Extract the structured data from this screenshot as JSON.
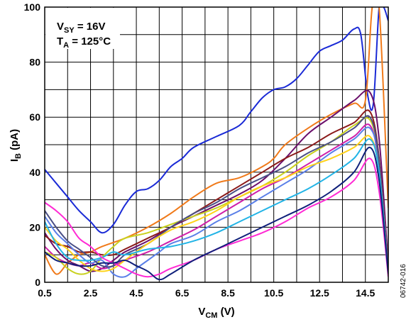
{
  "chart_data": {
    "type": "line",
    "xlabel": {
      "main": "V",
      "sub": "CM",
      "unit": " (V)"
    },
    "ylabel": {
      "main": "I",
      "sub": "B",
      "unit": " (pA)"
    },
    "xlim": [
      0.5,
      15.5
    ],
    "ylim": [
      0,
      100
    ],
    "xticks": [
      "0.5",
      "2.5",
      "4.5",
      "6.5",
      "8.5",
      "10.5",
      "12.5",
      "14.5"
    ],
    "yticks": [
      "0",
      "20",
      "40",
      "60",
      "80",
      "100"
    ],
    "x_grid_step": 1,
    "y_grid_step": 10,
    "grid": true,
    "annotations": [
      {
        "main": "V",
        "sub": "SY",
        "rest": " = 16V"
      },
      {
        "main": "T",
        "sub": "A",
        "rest": " = 125°C"
      }
    ],
    "figure_id": "06742-016",
    "series": [
      {
        "color": "#1a2ad6",
        "points": [
          [
            0.5,
            41
          ],
          [
            1,
            36
          ],
          [
            1.5,
            31
          ],
          [
            2,
            26
          ],
          [
            2.5,
            22
          ],
          [
            3,
            18
          ],
          [
            3.5,
            21
          ],
          [
            4,
            28
          ],
          [
            4.5,
            33
          ],
          [
            5,
            34
          ],
          [
            5.5,
            37
          ],
          [
            6,
            42
          ],
          [
            6.5,
            45
          ],
          [
            7,
            49
          ],
          [
            8,
            53
          ],
          [
            9,
            57
          ],
          [
            9.5,
            62
          ],
          [
            10,
            67
          ],
          [
            10.5,
            70
          ],
          [
            11,
            71
          ],
          [
            11.5,
            74
          ],
          [
            12,
            79
          ],
          [
            12.5,
            84
          ],
          [
            13,
            86
          ],
          [
            13.5,
            88
          ],
          [
            14,
            92
          ],
          [
            14.3,
            90
          ],
          [
            14.6,
            68
          ],
          [
            14.85,
            65
          ],
          [
            15.1,
            100
          ],
          [
            15.3,
            100
          ],
          [
            15.5,
            95
          ]
        ]
      },
      {
        "color": "#f07a1a",
        "points": [
          [
            0.5,
            10
          ],
          [
            1,
            3
          ],
          [
            1.5,
            7
          ],
          [
            2,
            10
          ],
          [
            2.5,
            11
          ],
          [
            3,
            13
          ],
          [
            4,
            16
          ],
          [
            5,
            20
          ],
          [
            6,
            25
          ],
          [
            7,
            31
          ],
          [
            8,
            36
          ],
          [
            9,
            38
          ],
          [
            10,
            42
          ],
          [
            10.5,
            45
          ],
          [
            11,
            50
          ],
          [
            12,
            56
          ],
          [
            13,
            61
          ],
          [
            14,
            65
          ],
          [
            14.5,
            66
          ],
          [
            14.8,
            100
          ],
          [
            15.1,
            100
          ],
          [
            15.5,
            27
          ]
        ]
      },
      {
        "color": "#6b0f6b",
        "points": [
          [
            0.5,
            18
          ],
          [
            1,
            12
          ],
          [
            1.5,
            8
          ],
          [
            2,
            6
          ],
          [
            2.5,
            4
          ],
          [
            3,
            5
          ],
          [
            3.5,
            8
          ],
          [
            4,
            11
          ],
          [
            5,
            15
          ],
          [
            6,
            20
          ],
          [
            7,
            24
          ],
          [
            8,
            28
          ],
          [
            9,
            32
          ],
          [
            10,
            37
          ],
          [
            11,
            45
          ],
          [
            12,
            54
          ],
          [
            13,
            60
          ],
          [
            14,
            66
          ],
          [
            14.7,
            69
          ],
          [
            15.1,
            52
          ],
          [
            15.5,
            6
          ]
        ]
      },
      {
        "color": "#8b1a1a",
        "points": [
          [
            0.5,
            17
          ],
          [
            1,
            14
          ],
          [
            1.5,
            13
          ],
          [
            2,
            11
          ],
          [
            2.5,
            11
          ],
          [
            3,
            10
          ],
          [
            3.5,
            10
          ],
          [
            4,
            12
          ],
          [
            5,
            16
          ],
          [
            6,
            20
          ],
          [
            7,
            25
          ],
          [
            8,
            30
          ],
          [
            9,
            35
          ],
          [
            10,
            40
          ],
          [
            11,
            45
          ],
          [
            12,
            49
          ],
          [
            13,
            54
          ],
          [
            14,
            58
          ],
          [
            14.7,
            62
          ],
          [
            15.1,
            45
          ],
          [
            15.5,
            4
          ]
        ]
      },
      {
        "color": "#cf1fa9",
        "points": [
          [
            0.5,
            13
          ],
          [
            1,
            9
          ],
          [
            1.5,
            7
          ],
          [
            2,
            6
          ],
          [
            2.5,
            7
          ],
          [
            3,
            5
          ],
          [
            3.5,
            6
          ],
          [
            4,
            8
          ],
          [
            5,
            11
          ],
          [
            6,
            15
          ],
          [
            7,
            19
          ],
          [
            8,
            24
          ],
          [
            9,
            29
          ],
          [
            10,
            34
          ],
          [
            11,
            38
          ],
          [
            12,
            43
          ],
          [
            13,
            48
          ],
          [
            14,
            53
          ],
          [
            14.7,
            57
          ],
          [
            15.1,
            42
          ],
          [
            15.5,
            4
          ]
        ]
      },
      {
        "color": "#c9d11e",
        "points": [
          [
            0.5,
            11
          ],
          [
            1,
            9
          ],
          [
            1.5,
            5
          ],
          [
            2,
            3
          ],
          [
            2.5,
            4
          ],
          [
            3,
            9
          ],
          [
            3.5,
            13
          ],
          [
            4,
            16
          ],
          [
            5,
            18
          ],
          [
            6,
            21
          ],
          [
            7,
            24
          ],
          [
            8,
            27
          ],
          [
            9,
            31
          ],
          [
            10,
            35
          ],
          [
            11,
            40
          ],
          [
            12,
            46
          ],
          [
            13,
            51
          ],
          [
            14,
            57
          ],
          [
            14.7,
            59
          ],
          [
            15.1,
            44
          ],
          [
            15.5,
            3
          ]
        ]
      },
      {
        "color": "#5a7fe8",
        "points": [
          [
            0.5,
            24
          ],
          [
            1,
            18
          ],
          [
            1.5,
            14
          ],
          [
            2,
            10
          ],
          [
            2.5,
            7
          ],
          [
            3,
            8
          ],
          [
            3.5,
            3
          ],
          [
            4,
            2
          ],
          [
            4.5,
            5
          ],
          [
            5,
            8
          ],
          [
            5.5,
            11
          ],
          [
            6,
            14
          ],
          [
            7,
            17
          ],
          [
            8,
            22
          ],
          [
            9,
            26
          ],
          [
            10,
            31
          ],
          [
            11,
            36
          ],
          [
            12,
            41
          ],
          [
            13,
            47
          ],
          [
            14,
            52
          ],
          [
            14.7,
            56
          ],
          [
            15.1,
            43
          ],
          [
            15.5,
            2
          ]
        ]
      },
      {
        "color": "#4a4f86",
        "points": [
          [
            0.5,
            26
          ],
          [
            1,
            20
          ],
          [
            1.5,
            15
          ],
          [
            2,
            12
          ],
          [
            2.5,
            9
          ],
          [
            3,
            6
          ],
          [
            3.5,
            6
          ],
          [
            4,
            10
          ],
          [
            5,
            14
          ],
          [
            6,
            20
          ],
          [
            7,
            25
          ],
          [
            8,
            29
          ],
          [
            9,
            34
          ],
          [
            10,
            38
          ],
          [
            11,
            42
          ],
          [
            12,
            47
          ],
          [
            13,
            51
          ],
          [
            14,
            56
          ],
          [
            14.7,
            60
          ],
          [
            15.1,
            44
          ],
          [
            15.5,
            3
          ]
        ]
      },
      {
        "color": "#ffd21a",
        "points": [
          [
            0.5,
            20
          ],
          [
            1,
            15
          ],
          [
            1.5,
            12
          ],
          [
            2,
            8
          ],
          [
            2.5,
            5
          ],
          [
            3,
            4
          ],
          [
            3.5,
            5
          ],
          [
            4,
            8
          ],
          [
            5,
            14
          ],
          [
            6,
            19
          ],
          [
            7,
            22
          ],
          [
            8,
            26
          ],
          [
            9,
            31
          ],
          [
            10,
            35
          ],
          [
            11,
            38
          ],
          [
            12,
            42
          ],
          [
            13,
            45
          ],
          [
            14,
            49
          ],
          [
            14.7,
            53
          ],
          [
            15.1,
            40
          ],
          [
            15.5,
            3
          ]
        ]
      },
      {
        "color": "#22b4e6",
        "points": [
          [
            0.5,
            22
          ],
          [
            1,
            14
          ],
          [
            1.5,
            9
          ],
          [
            2,
            8
          ],
          [
            2.5,
            8
          ],
          [
            3,
            9
          ],
          [
            3.5,
            11
          ],
          [
            4,
            10
          ],
          [
            5,
            12
          ],
          [
            6,
            13
          ],
          [
            7,
            15
          ],
          [
            8,
            18
          ],
          [
            9,
            22
          ],
          [
            10,
            26
          ],
          [
            11,
            30
          ],
          [
            12,
            34
          ],
          [
            13,
            39
          ],
          [
            14,
            45
          ],
          [
            14.7,
            52
          ],
          [
            15.1,
            40
          ],
          [
            15.5,
            3
          ]
        ]
      },
      {
        "color": "#ff2ad4",
        "points": [
          [
            0.5,
            29
          ],
          [
            1,
            26
          ],
          [
            1.5,
            22
          ],
          [
            2,
            16
          ],
          [
            2.5,
            13
          ],
          [
            3,
            9
          ],
          [
            3.5,
            7
          ],
          [
            4,
            5
          ],
          [
            4.5,
            3
          ],
          [
            5,
            2
          ],
          [
            5.5,
            3
          ],
          [
            6,
            5
          ],
          [
            7,
            8
          ],
          [
            8,
            12
          ],
          [
            9,
            15
          ],
          [
            10,
            18
          ],
          [
            11,
            22
          ],
          [
            12,
            27
          ],
          [
            13,
            31
          ],
          [
            14,
            37
          ],
          [
            14.7,
            45
          ],
          [
            15.1,
            33
          ],
          [
            15.5,
            2
          ]
        ]
      },
      {
        "color": "#0f1f7a",
        "points": [
          [
            0.5,
            11
          ],
          [
            1,
            8
          ],
          [
            1.5,
            7
          ],
          [
            2,
            6
          ],
          [
            2.5,
            6
          ],
          [
            3,
            7
          ],
          [
            3.5,
            7
          ],
          [
            4,
            8
          ],
          [
            4.5,
            6
          ],
          [
            5,
            4
          ],
          [
            5.5,
            1
          ],
          [
            6,
            3
          ],
          [
            7,
            8
          ],
          [
            8,
            12
          ],
          [
            9,
            16
          ],
          [
            10,
            20
          ],
          [
            11,
            24
          ],
          [
            12,
            28
          ],
          [
            13,
            33
          ],
          [
            14,
            40
          ],
          [
            14.7,
            49
          ],
          [
            15.1,
            37
          ],
          [
            15.5,
            3
          ]
        ]
      }
    ]
  }
}
